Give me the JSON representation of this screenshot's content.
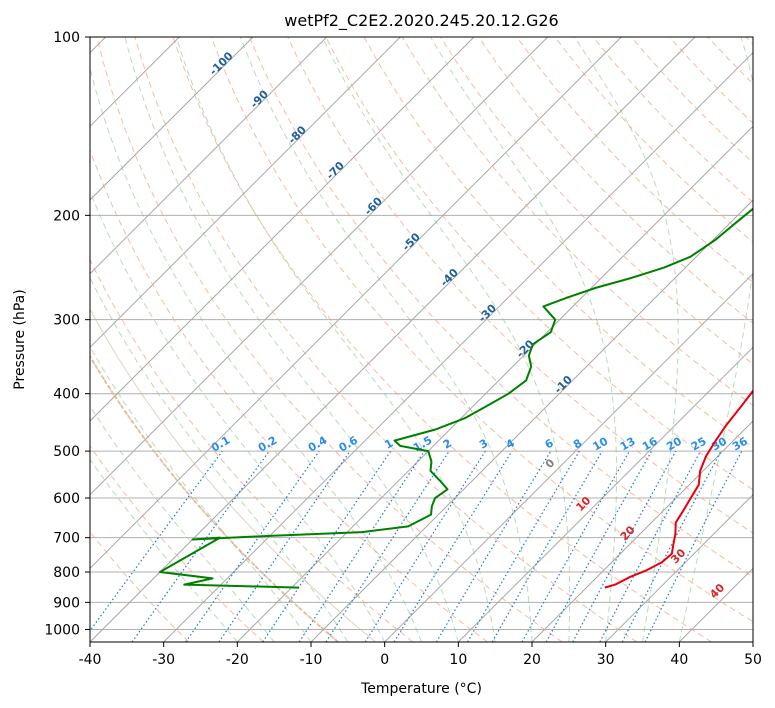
{
  "chart_data": {
    "type": "skew-t",
    "title": "wetPf2_C2E2.2020.245.20.12.G26",
    "xlabel": "Temperature (°C)",
    "ylabel": "Pressure (hPa)",
    "xlim": [
      -40,
      50
    ],
    "ylim": [
      1050,
      100
    ],
    "x_ticks": [
      "-40",
      "-30",
      "-20",
      "-10",
      "0",
      "10",
      "20",
      "30",
      "40",
      "50"
    ],
    "y_ticks": [
      "100",
      "200",
      "300",
      "400",
      "500",
      "600",
      "700",
      "800",
      "900",
      "1000"
    ],
    "dry_adiabat_labels": [
      "-100",
      "-90",
      "-80",
      "-70",
      "-60",
      "-50",
      "-40",
      "-30",
      "-20",
      "-10",
      "0",
      "10",
      "20",
      "30",
      "40"
    ],
    "mixing_ratio_labels": [
      "0.1",
      "0.2",
      "0.4",
      "0.6",
      "1",
      "1.5",
      "2",
      "3",
      "4",
      "6",
      "8",
      "10",
      "13",
      "16",
      "20",
      "25",
      "30",
      "36"
    ],
    "series": [
      {
        "name": "Temperature",
        "color": "#e8000b",
        "points": [
          [
            22.5,
            850
          ],
          [
            23.5,
            840
          ],
          [
            24.5,
            815
          ],
          [
            25.8,
            795
          ],
          [
            26.8,
            770
          ],
          [
            27.0,
            745
          ],
          [
            26.0,
            720
          ],
          [
            24.8,
            690
          ],
          [
            23.3,
            660
          ],
          [
            22.7,
            630
          ],
          [
            22.0,
            600
          ],
          [
            21.3,
            570
          ],
          [
            19.6,
            540
          ],
          [
            18.4,
            510
          ],
          [
            17.6,
            480
          ],
          [
            16.9,
            450
          ],
          [
            16.4,
            420
          ],
          [
            15.8,
            390
          ],
          [
            14.4,
            365
          ],
          [
            12.8,
            340
          ],
          [
            11.5,
            320
          ],
          [
            10.0,
            300
          ],
          [
            8.5,
            280
          ],
          [
            6.5,
            260
          ],
          [
            4.9,
            240
          ],
          [
            3.3,
            220
          ],
          [
            2.0,
            200
          ],
          [
            0.9,
            183
          ],
          [
            0.2,
            170
          ],
          [
            0.0,
            150
          ],
          [
            0.0,
            135
          ],
          [
            0.4,
            125
          ],
          [
            1.5,
            117
          ],
          [
            3.0,
            108
          ],
          [
            4.0,
            100
          ]
        ]
      },
      {
        "name": "Dewpoint",
        "color": "#008000",
        "points": [
          [
            -19.0,
            850
          ],
          [
            -27.0,
            845
          ],
          [
            -35.0,
            840
          ],
          [
            -32.0,
            820
          ],
          [
            -40.0,
            800
          ],
          [
            -36.5,
            700
          ],
          [
            -40.0,
            705
          ],
          [
            -30.0,
            695
          ],
          [
            -18.0,
            685
          ],
          [
            -12.5,
            670
          ],
          [
            -11.0,
            640
          ],
          [
            -12.0,
            620
          ],
          [
            -12.7,
            600
          ],
          [
            -12.2,
            580
          ],
          [
            -14.5,
            560
          ],
          [
            -17.0,
            540
          ],
          [
            -18.2,
            520
          ],
          [
            -20.0,
            500
          ],
          [
            -24.5,
            490
          ],
          [
            -26.0,
            480
          ],
          [
            -22.0,
            460
          ],
          [
            -19.5,
            440
          ],
          [
            -18.2,
            420
          ],
          [
            -16.9,
            400
          ],
          [
            -16.3,
            380
          ],
          [
            -17.5,
            360
          ],
          [
            -19.3,
            345
          ],
          [
            -20.3,
            330
          ],
          [
            -19.5,
            315
          ],
          [
            -20.6,
            300
          ],
          [
            -24.0,
            285
          ],
          [
            -21.9,
            275
          ],
          [
            -19.4,
            265
          ],
          [
            -15.9,
            255
          ],
          [
            -12.9,
            245
          ],
          [
            -10.8,
            235
          ],
          [
            -9.7,
            220
          ],
          [
            -9.2,
            205
          ],
          [
            -8.8,
            195
          ],
          [
            -8.8,
            180
          ],
          [
            -8.8,
            168
          ],
          [
            -9.3,
            155
          ],
          [
            -9.2,
            140
          ],
          [
            -8.9,
            130
          ],
          [
            -8.3,
            122
          ],
          [
            -7.8,
            115
          ],
          [
            -6.8,
            108
          ],
          [
            -5.8,
            100
          ]
        ]
      }
    ]
  }
}
